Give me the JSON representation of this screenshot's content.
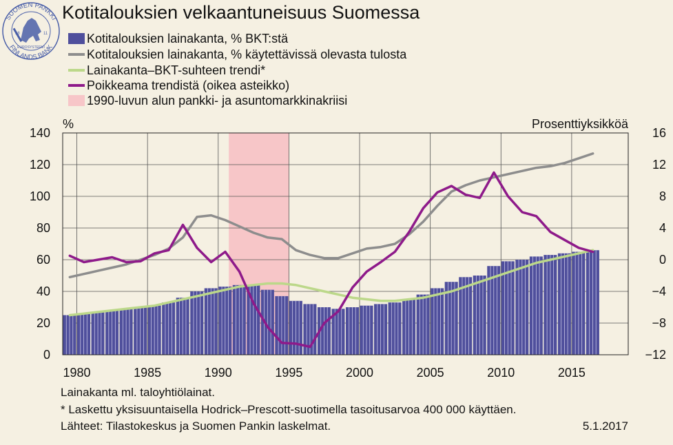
{
  "logo": {
    "top_text": "SUOMEN PANKKI",
    "bottom_text": "FINLANDS BANK",
    "middle_text": "EUROSYSTEEMI",
    "year_left": "18",
    "year_right": "11"
  },
  "colors": {
    "background": "#f5f0e2",
    "bars": "#4f4f9c",
    "household_income": "#8d8d8d",
    "trend": "#bcd88a",
    "deviation": "#8e1a8a",
    "crisis": "#f7c6c8"
  },
  "chart_data": {
    "type": "bar",
    "title": "Kotitalouksien velkaantuneisuus Suomessa",
    "left_axis": {
      "unit": "%",
      "min": 0,
      "max": 140,
      "ticks": [
        0,
        20,
        40,
        60,
        80,
        100,
        120,
        140
      ]
    },
    "right_axis": {
      "unit": "Prosenttiyksikköä",
      "min": -12,
      "max": 16,
      "ticks": [
        -12,
        -8,
        -4,
        0,
        4,
        8,
        12,
        16
      ],
      "tick_labels": [
        "−12",
        "−8",
        "−4",
        "0",
        "4",
        "8",
        "12",
        "16"
      ]
    },
    "x_axis": {
      "min": 1979,
      "max": 2019,
      "ticks": [
        1980,
        1985,
        1990,
        1995,
        2000,
        2005,
        2010,
        2015
      ]
    },
    "grid": true,
    "legend": [
      {
        "label": "Kotitalouksien lainakanta, % BKT:stä",
        "kind": "bar"
      },
      {
        "label": "Kotitalouksien lainakanta, % käytettävissä olevasta tulosta",
        "kind": "line"
      },
      {
        "label": "Lainakanta–BKT-suhteen trendi*",
        "kind": "line"
      },
      {
        "label": "Poikkeama trendistä (oikea asteikko)",
        "kind": "line"
      },
      {
        "label": "1990-luvun alun pankki- ja asuntomarkkinakriisi",
        "kind": "band"
      }
    ],
    "crisis_period": [
      1990.75,
      1995.0
    ],
    "series": [
      {
        "name": "Kotitalouksien lainakanta, % BKT:stä",
        "type": "bar",
        "axis": "left",
        "x": [
          1979,
          1980,
          1981,
          1982,
          1983,
          1984,
          1985,
          1986,
          1987,
          1988,
          1989,
          1990,
          1991,
          1992,
          1993,
          1994,
          1995,
          1996,
          1997,
          1998,
          1999,
          2000,
          2001,
          2002,
          2003,
          2004,
          2005,
          2006,
          2007,
          2008,
          2009,
          2010,
          2011,
          2012,
          2013,
          2014,
          2015,
          2016
        ],
        "values": [
          25,
          26,
          27,
          28,
          29,
          30,
          31,
          33,
          36,
          40,
          42,
          43,
          44,
          44,
          41,
          37,
          34,
          32,
          30,
          29,
          30,
          31,
          32,
          33,
          35,
          38,
          42,
          46,
          49,
          50,
          56,
          59,
          60,
          62,
          63,
          64,
          65,
          66
        ]
      },
      {
        "name": "Kotitalouksien lainakanta, % käytettävissä olevasta tulosta",
        "type": "line",
        "axis": "left",
        "x": [
          1979,
          1980,
          1981,
          1982,
          1983,
          1984,
          1985,
          1986,
          1987,
          1988,
          1989,
          1990,
          1991,
          1992,
          1993,
          1994,
          1995,
          1996,
          1997,
          1998,
          1999,
          2000,
          2001,
          2002,
          2003,
          2004,
          2005,
          2006,
          2007,
          2008,
          2009,
          2010,
          2011,
          2012,
          2013,
          2014,
          2015,
          2016
        ],
        "values": [
          49,
          51,
          53,
          55,
          57,
          60,
          63,
          67,
          74,
          87,
          88,
          85,
          81,
          77,
          74,
          73,
          66,
          63,
          61,
          61,
          64,
          67,
          68,
          70,
          76,
          84,
          94,
          103,
          107,
          110,
          112,
          114,
          116,
          118,
          119,
          121,
          124,
          127
        ]
      },
      {
        "name": "Lainakanta–BKT-suhteen trendi*",
        "type": "line",
        "axis": "left",
        "x": [
          1979,
          1980,
          1981,
          1982,
          1983,
          1984,
          1985,
          1986,
          1987,
          1988,
          1989,
          1990,
          1991,
          1992,
          1993,
          1994,
          1995,
          1996,
          1997,
          1998,
          1999,
          2000,
          2001,
          2002,
          2003,
          2004,
          2005,
          2006,
          2007,
          2008,
          2009,
          2010,
          2011,
          2012,
          2013,
          2014,
          2015,
          2016
        ],
        "values": [
          25,
          26,
          27,
          28,
          29,
          30,
          31,
          33,
          35,
          37,
          39,
          41,
          43,
          44,
          45,
          45,
          44,
          42,
          40,
          38,
          36,
          35,
          34,
          34,
          35,
          36,
          38,
          40,
          43,
          46,
          49,
          52,
          55,
          58,
          60,
          62,
          64,
          66
        ]
      },
      {
        "name": "Poikkeama trendistä (oikea asteikko)",
        "type": "line",
        "axis": "right",
        "x": [
          1979,
          1980,
          1981,
          1982,
          1983,
          1984,
          1985,
          1986,
          1987,
          1988,
          1989,
          1990,
          1991,
          1992,
          1993,
          1994,
          1995,
          1996,
          1997,
          1998,
          1999,
          2000,
          2001,
          2002,
          2003,
          2004,
          2005,
          2006,
          2007,
          2008,
          2009,
          2010,
          2011,
          2012,
          2013,
          2014,
          2015,
          2016
        ],
        "values": [
          0.5,
          -0.3,
          0.0,
          0.3,
          -0.3,
          -0.2,
          0.8,
          1.2,
          4.4,
          1.5,
          -0.3,
          1.0,
          -1.5,
          -5.5,
          -8.5,
          -10.5,
          -10.6,
          -11.0,
          -8.0,
          -6.5,
          -3.5,
          -1.5,
          -0.3,
          1.0,
          3.5,
          6.5,
          8.5,
          9.3,
          8.2,
          7.8,
          11.0,
          8.0,
          6.0,
          5.5,
          3.5,
          2.5,
          1.5,
          1.0
        ]
      }
    ]
  },
  "notes": {
    "note1": "Lainakanta ml. taloyhtiölainat.",
    "note2": "* Laskettu yksisuuntaisella Hodrick–Prescott-suotimella tasoitusarvoa 400 000 käyttäen.",
    "sources": "Lähteet: Tilastokeskus ja Suomen Pankin laskelmat.",
    "date": "5.1.2017"
  }
}
